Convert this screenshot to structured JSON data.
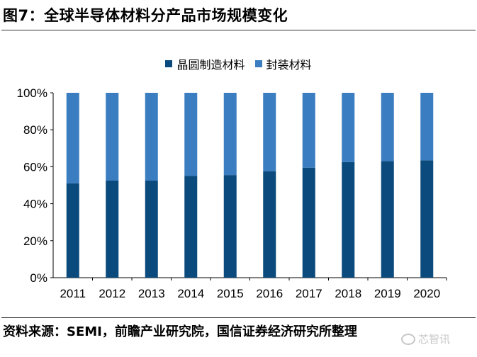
{
  "title": "图7：全球半导体材料分产品市场规模变化",
  "source": "资料来源：SEMI，前瞻产业研究院，国信证券经济研究所整理",
  "watermark": "芯智讯",
  "colors": {
    "wafer": "#0a4a7c",
    "packaging": "#3a7dc0",
    "axis": "#000000"
  },
  "chart_data": {
    "type": "bar",
    "stacked": true,
    "categories": [
      "2011",
      "2012",
      "2013",
      "2014",
      "2015",
      "2016",
      "2017",
      "2018",
      "2019",
      "2020"
    ],
    "series": [
      {
        "name": "晶圆制造材料",
        "values": [
          51,
          52.5,
          52.5,
          55,
          55.5,
          57.5,
          59.5,
          62.5,
          63,
          63.5
        ]
      },
      {
        "name": "封装材料",
        "values": [
          49,
          47.5,
          47.5,
          45,
          44.5,
          42.5,
          40.5,
          37.5,
          37,
          36.5
        ]
      }
    ],
    "yticks": [
      "0%",
      "20%",
      "40%",
      "60%",
      "80%",
      "100%"
    ],
    "ylim": [
      0,
      100
    ],
    "legend_position": "top",
    "grid": false
  }
}
